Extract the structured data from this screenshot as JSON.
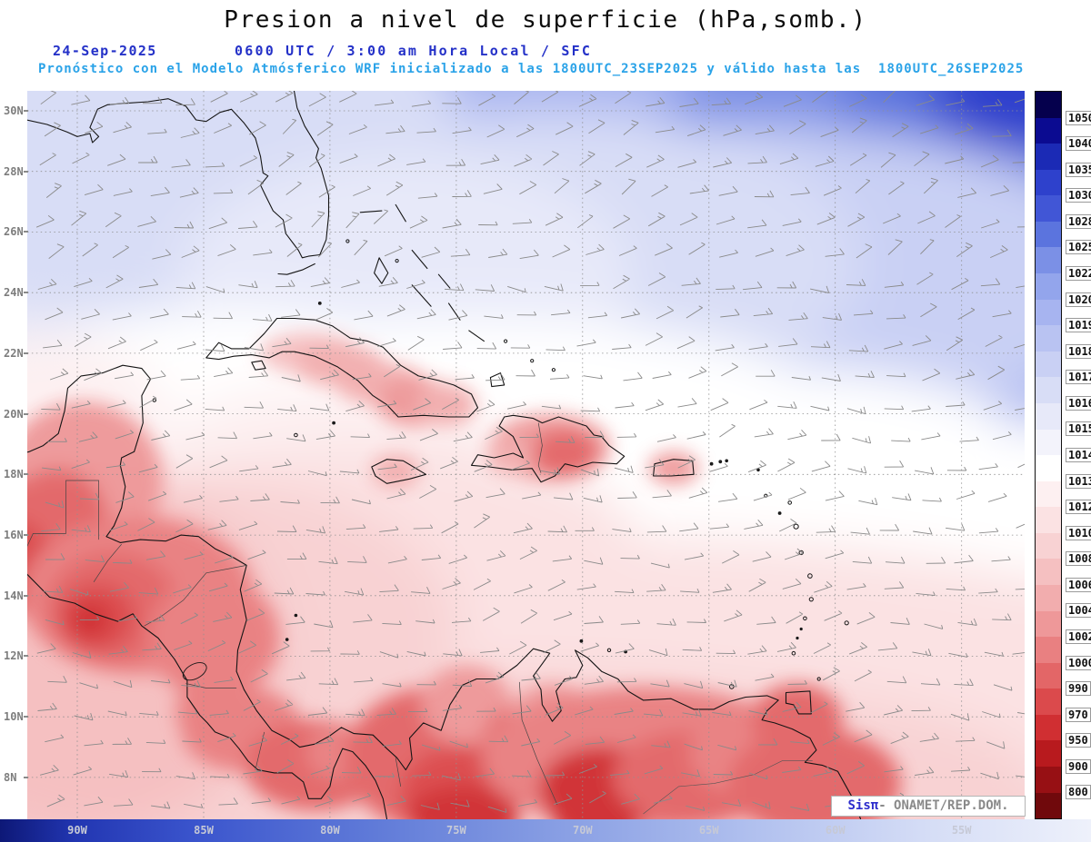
{
  "title": "Presion a nivel de superficie (hPa,somb.)",
  "header": {
    "date": "24-Sep-2025",
    "valid": "0600 UTC / 3:00 am Hora Local / SFC",
    "forecast": "Pronóstico con el Modelo Atmósferico WRF inicializado a las 1800UTC_23SEP2025 y válido hasta las  1800UTC_26SEP2025"
  },
  "credit": {
    "system": "Sisπ",
    "agency": "- ONAMET/REP.DOM."
  },
  "chart_data": {
    "type": "heatmap",
    "title": "Presion a nivel de superficie (hPa,somb.)",
    "units": "hPa",
    "model": "WRF",
    "init_time": "1800UTC_23SEP2025",
    "valid_until": "1800UTC_26SEP2025",
    "lon_range": [
      -91.98,
      -52.51
    ],
    "lat_range": [
      6.62,
      30.66
    ],
    "lat_ticks": [
      {
        "label": "30N",
        "deg": 30
      },
      {
        "label": "28N",
        "deg": 28
      },
      {
        "label": "26N",
        "deg": 26
      },
      {
        "label": "24N",
        "deg": 24
      },
      {
        "label": "22N",
        "deg": 22
      },
      {
        "label": "20N",
        "deg": 20
      },
      {
        "label": "18N",
        "deg": 18
      },
      {
        "label": "16N",
        "deg": 16
      },
      {
        "label": "14N",
        "deg": 14
      },
      {
        "label": "12N",
        "deg": 12
      },
      {
        "label": "10N",
        "deg": 10
      },
      {
        "label": "8N",
        "deg": 8
      }
    ],
    "lon_ticks": [
      {
        "label": "90W",
        "deg": -90
      },
      {
        "label": "85W",
        "deg": -85
      },
      {
        "label": "80W",
        "deg": -80
      },
      {
        "label": "75W",
        "deg": -75
      },
      {
        "label": "70W",
        "deg": -70
      },
      {
        "label": "65W",
        "deg": -65
      },
      {
        "label": "60W",
        "deg": -60
      },
      {
        "label": "55W",
        "deg": -55
      }
    ],
    "colorbar": {
      "levels": [
        1050,
        1040,
        1035,
        1030,
        1028,
        1025,
        1022,
        1020,
        1019,
        1018,
        1017,
        1016,
        1015,
        1014,
        1013,
        1012,
        1010,
        1008,
        1006,
        1004,
        1002,
        1000,
        990,
        970,
        950,
        900,
        800
      ],
      "colors": [
        "#05004d",
        "#0b0b91",
        "#1b2ab5",
        "#2e41cc",
        "#4156d6",
        "#5b74de",
        "#7b90e6",
        "#93a5ec",
        "#a7b4f0",
        "#b9c3f2",
        "#c9d0f4",
        "#d8ddf6",
        "#e7e9f9",
        "#f3f3fb",
        "#ffffff",
        "#fdf0f1",
        "#fbe2e3",
        "#f8d2d3",
        "#f5c0c1",
        "#f2adae",
        "#ee9899",
        "#e98081",
        "#e36667",
        "#db4a4c",
        "#d02f32",
        "#b81a1e",
        "#971014",
        "#70090c"
      ]
    },
    "pressure_field_ellipses": [
      [
        -72,
        32.5,
        44,
        9.5,
        1017.5,
        1
      ],
      [
        -60,
        28,
        20,
        9,
        1019,
        1
      ],
      [
        -55,
        28.5,
        12,
        6.5,
        1022,
        1
      ],
      [
        -53.5,
        30,
        6.5,
        3.5,
        1027,
        1
      ],
      [
        -52.8,
        30.6,
        3.4,
        1.9,
        1033,
        1
      ],
      [
        -88,
        29.5,
        13,
        6,
        1016,
        1
      ],
      [
        -63,
        24.5,
        15,
        5,
        1017,
        1
      ],
      [
        -71,
        25,
        12,
        5,
        1016,
        1
      ],
      [
        -77,
        24.5,
        9,
        4,
        1015.5,
        1
      ],
      [
        -84,
        20.5,
        9,
        3,
        1013.5,
        1
      ],
      [
        -74,
        20,
        14,
        3.2,
        1013.5,
        1
      ],
      [
        -62,
        18.5,
        10,
        3,
        1013.5,
        1
      ],
      [
        -56,
        16.5,
        7,
        3,
        1013.5,
        1
      ],
      [
        -91.5,
        20,
        5,
        2.5,
        1012.5,
        1
      ],
      [
        -80,
        18.5,
        7,
        2.5,
        1012.5,
        1
      ],
      [
        -78,
        16,
        10,
        3,
        1011.5,
        1
      ],
      [
        -66,
        13,
        8,
        2.5,
        1011,
        1
      ],
      [
        -70,
        11,
        26,
        5,
        1010,
        1
      ],
      [
        -86,
        13,
        11,
        5,
        1009,
        1
      ],
      [
        -74,
        8,
        22,
        3.5,
        1008,
        1
      ],
      [
        -90,
        12,
        8,
        6,
        1006,
        1
      ],
      [
        -89.8,
        17.8,
        3.2,
        2.6,
        1003,
        0
      ],
      [
        -90.8,
        16.4,
        2.0,
        1.8,
        998,
        0
      ],
      [
        -92.3,
        15.6,
        2.6,
        2.2,
        990,
        0
      ],
      [
        -92.6,
        15.1,
        1.6,
        1.4,
        972,
        0
      ],
      [
        -87.6,
        14,
        4.6,
        2.6,
        1001,
        0
      ],
      [
        -88.6,
        13.6,
        2.6,
        1.8,
        993,
        0
      ],
      [
        -89.2,
        13.3,
        1.5,
        1.1,
        974,
        0
      ],
      [
        -89.5,
        13.2,
        0.8,
        0.6,
        955,
        0
      ],
      [
        -84.6,
        12.6,
        2.6,
        2.0,
        1001,
        0
      ],
      [
        -84.6,
        10.2,
        1.5,
        1.0,
        1001,
        0
      ],
      [
        -83.5,
        9.6,
        2.4,
        1.4,
        1000,
        0
      ],
      [
        -80.6,
        8.4,
        2.8,
        1.5,
        999,
        0
      ],
      [
        -79.7,
        8.8,
        1.3,
        0.9,
        1001,
        0
      ],
      [
        -75.8,
        8.6,
        3.6,
        2.4,
        999,
        0
      ],
      [
        -74.8,
        7.4,
        2.4,
        1.6,
        988,
        0
      ],
      [
        -74.7,
        6.7,
        2.2,
        1.0,
        960,
        0
      ],
      [
        -74.6,
        10.4,
        1.8,
        1.3,
        1002,
        0
      ],
      [
        -72.0,
        9.0,
        2.0,
        1.5,
        996,
        0
      ],
      [
        -71.2,
        9.9,
        1.7,
        1.2,
        1002,
        0
      ],
      [
        -67.5,
        8.6,
        6.5,
        2.4,
        1001,
        0
      ],
      [
        -69.3,
        7.6,
        2.4,
        1.4,
        968,
        0
      ],
      [
        -69.4,
        6.7,
        1.8,
        0.9,
        955,
        0
      ],
      [
        -65.8,
        8,
        3,
        1.5,
        994,
        0
      ],
      [
        -63.6,
        8.8,
        2.2,
        1.4,
        1000,
        0
      ],
      [
        -61.5,
        9.9,
        1.8,
        1.2,
        999,
        0
      ],
      [
        -60.8,
        7.8,
        3.4,
        1.8,
        999,
        0
      ],
      [
        -71.3,
        18.9,
        2.4,
        1.1,
        1002,
        0
      ],
      [
        -70.7,
        18.7,
        1.3,
        0.8,
        997,
        0
      ],
      [
        -72.9,
        18.6,
        0.9,
        0.6,
        1004,
        0
      ],
      [
        -66.4,
        18.2,
        1.0,
        0.55,
        1003,
        0
      ],
      [
        -77.4,
        18.1,
        0.95,
        0.55,
        1004,
        0
      ],
      [
        -80.8,
        22.0,
        2.0,
        0.7,
        1007,
        0
      ],
      [
        -79.6,
        21.6,
        1.8,
        0.7,
        1005,
        0
      ],
      [
        -78.0,
        21.0,
        1.8,
        0.7,
        1004,
        0
      ],
      [
        -76.6,
        20.4,
        1.6,
        0.8,
        1003,
        0
      ],
      [
        -75.4,
        20.3,
        1.2,
        0.7,
        1005,
        0
      ]
    ]
  }
}
